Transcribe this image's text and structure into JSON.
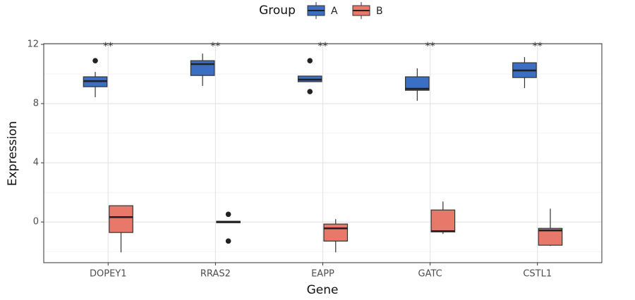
{
  "chart_data": {
    "type": "box",
    "x_label": "Gene",
    "y_label": "Expression",
    "legend_title": "Group",
    "legend_position": "top",
    "categories": [
      "DOPEY1",
      "RRAS2",
      "EAPP",
      "GATC",
      "CSTL1"
    ],
    "annotations": [
      "**",
      "**",
      "**",
      "**",
      "**"
    ],
    "ylim": [
      -2.75,
      12.05
    ],
    "yticks": [
      0,
      4,
      8,
      12
    ],
    "y_minor_ticks": [
      -2,
      2,
      6,
      10
    ],
    "grid": true,
    "series": [
      {
        "name": "A",
        "color": "#3a6fc4",
        "boxes": [
          {
            "min": 8.43,
            "q1": 9.14,
            "median": 9.52,
            "q3": 9.81,
            "max": 10.14,
            "outliers": [
              10.9
            ]
          },
          {
            "min": 9.19,
            "q1": 9.9,
            "median": 10.67,
            "q3": 10.9,
            "max": 11.38,
            "outliers": []
          },
          {
            "min": 9.48,
            "q1": 9.48,
            "median": 9.62,
            "q3": 9.86,
            "max": 9.86,
            "outliers": [
              10.9,
              8.81
            ]
          },
          {
            "min": 8.19,
            "q1": 8.9,
            "median": 9.0,
            "q3": 9.81,
            "max": 10.38,
            "outliers": []
          },
          {
            "min": 9.05,
            "q1": 9.76,
            "median": 10.24,
            "q3": 10.76,
            "max": 11.14,
            "outliers": []
          }
        ]
      },
      {
        "name": "B",
        "color": "#e8786a",
        "boxes": [
          {
            "min": -2.05,
            "q1": -0.71,
            "median": 0.33,
            "q3": 1.1,
            "max": 1.1,
            "outliers": []
          },
          {
            "min": -0.05,
            "q1": -0.05,
            "median": 0,
            "q3": 0.05,
            "max": 0.05,
            "outliers": [
              0.52,
              -1.29
            ]
          },
          {
            "min": -2.05,
            "q1": -1.29,
            "median": -0.43,
            "q3": -0.14,
            "max": 0.19,
            "outliers": []
          },
          {
            "min": -0.81,
            "q1": -0.67,
            "median": -0.62,
            "q3": 0.81,
            "max": 1.38,
            "outliers": []
          },
          {
            "min": -1.62,
            "q1": -1.57,
            "median": -0.57,
            "q3": -0.43,
            "max": 0.9,
            "outliers": []
          }
        ]
      }
    ]
  }
}
